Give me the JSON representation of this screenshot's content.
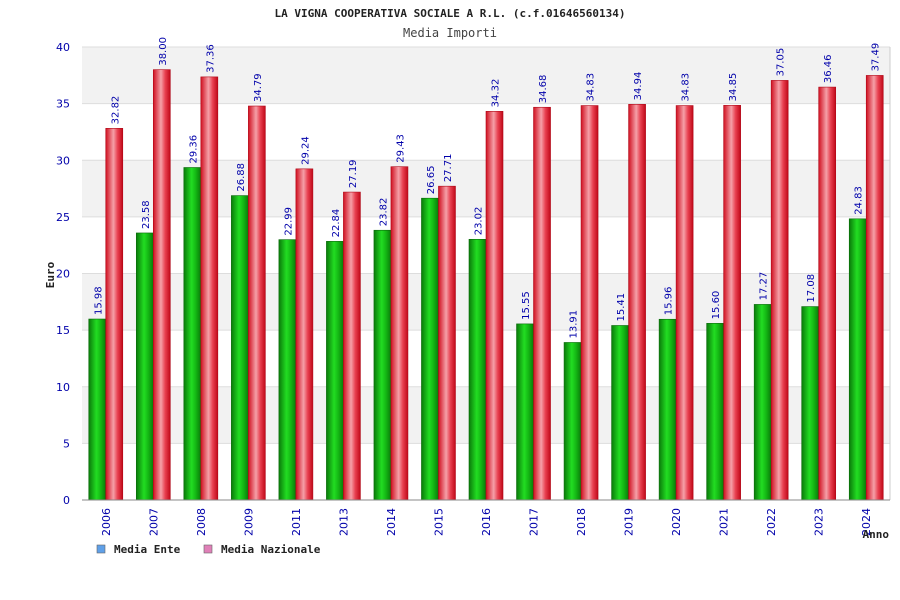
{
  "chart_data": {
    "type": "bar",
    "title": "LA VIGNA COOPERATIVA SOCIALE A R.L. (c.f.01646560134)",
    "subtitle": "Media Importi",
    "xlabel": "Anno",
    "ylabel": "Euro",
    "ylim": [
      0,
      40
    ],
    "yticks": [
      "0",
      "5",
      "10",
      "15",
      "20",
      "25",
      "30",
      "35",
      "40"
    ],
    "grid": true,
    "legend_position": "bottom-left",
    "categories": [
      "2006",
      "2007",
      "2008",
      "2009",
      "2011",
      "2013",
      "2014",
      "2015",
      "2016",
      "2017",
      "2018",
      "2019",
      "2020",
      "2021",
      "2022",
      "2023",
      "2024"
    ],
    "series": [
      {
        "name": "Media Ente",
        "legend_color": "#5fa0e8",
        "bar_color": "#12b012",
        "values": [
          15.98,
          23.58,
          29.36,
          26.88,
          22.99,
          22.84,
          23.82,
          26.65,
          23.02,
          15.55,
          13.91,
          15.41,
          15.96,
          15.6,
          17.27,
          17.08,
          24.83
        ],
        "labels": [
          "15.98",
          "23.58",
          "29.36",
          "26.88",
          "22.99",
          "22.84",
          "23.82",
          "26.65",
          "23.02",
          "15.55",
          "13.91",
          "15.41",
          "15.96",
          "15.60",
          "17.27",
          "17.08",
          "24.83"
        ]
      },
      {
        "name": "Media Nazionale",
        "legend_color": "#e080b8",
        "bar_color": "#e8262e",
        "values": [
          32.82,
          38.0,
          37.36,
          34.79,
          29.24,
          27.19,
          29.43,
          27.71,
          34.32,
          34.68,
          34.83,
          34.94,
          34.83,
          34.85,
          37.05,
          36.46,
          37.49
        ],
        "labels": [
          "32.82",
          "38.00",
          "37.36",
          "34.79",
          "29.24",
          "27.19",
          "29.43",
          "27.71",
          "34.32",
          "34.68",
          "34.83",
          "34.94",
          "34.83",
          "34.85",
          "37.05",
          "36.46",
          "37.49"
        ]
      }
    ]
  }
}
